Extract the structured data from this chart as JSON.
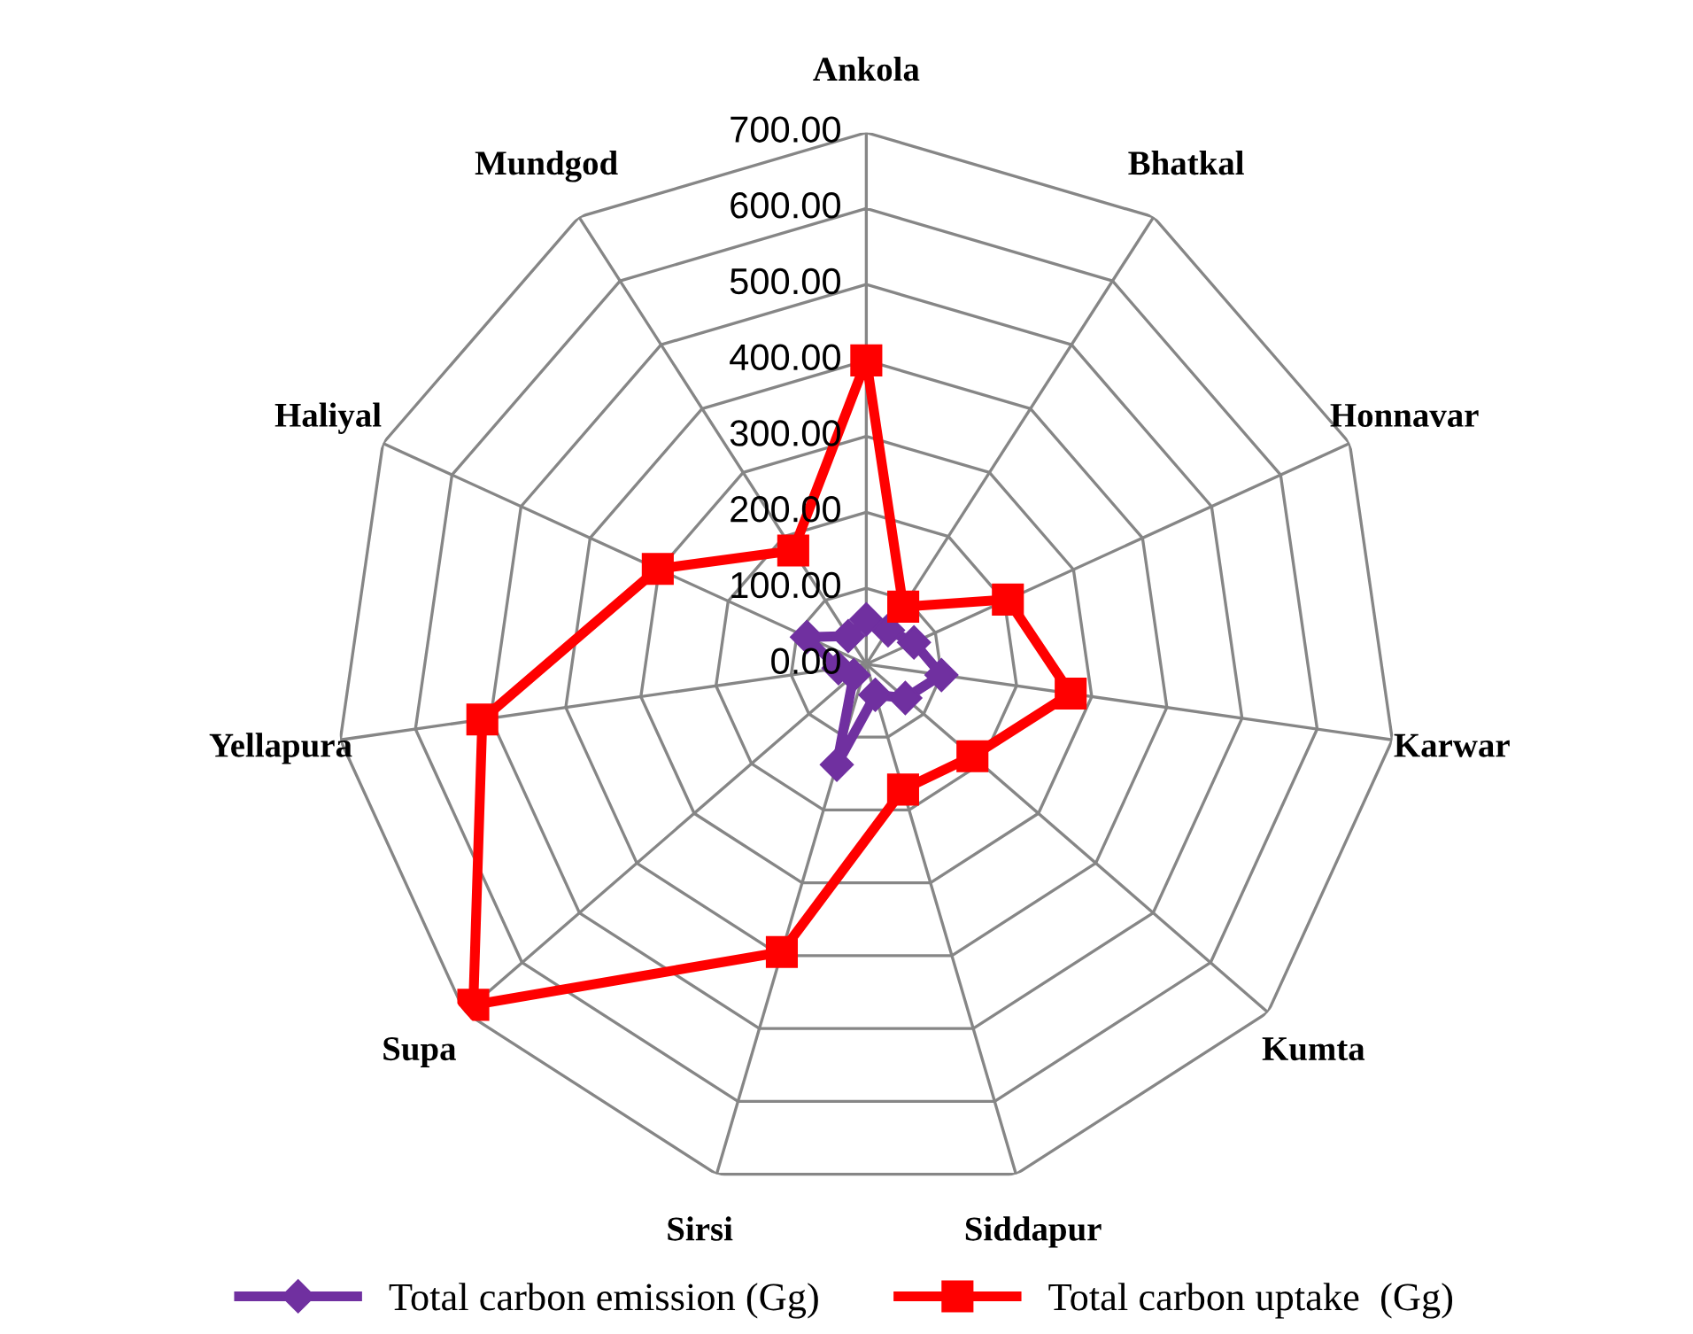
{
  "chart_data": {
    "type": "radar",
    "categories": [
      "Ankola",
      "Bhatkal",
      "Honnavar",
      "Karwar",
      "Kumta",
      "Siddapur",
      "Sirsi",
      "Supa",
      "Yellapura",
      "Haliyal",
      "Mundgod"
    ],
    "series": [
      {
        "name": "Total carbon emission (Gg)",
        "color": "#7030a0",
        "marker": "diamond",
        "values": [
          59,
          53,
          69,
          100,
          68,
          42,
          138,
          22,
          37,
          86,
          44
        ]
      },
      {
        "name": "Total carbon uptake  (Gg)",
        "color": "#ff0000",
        "marker": "square",
        "values": [
          400,
          90,
          205,
          272,
          185,
          172,
          395,
          685,
          511,
          302,
          178
        ]
      }
    ],
    "ylim": [
      0,
      700
    ],
    "yticks": [
      {
        "value": 0,
        "label": "0.00"
      },
      {
        "value": 100,
        "label": "100.00"
      },
      {
        "value": 200,
        "label": "200.00"
      },
      {
        "value": 300,
        "label": "300.00"
      },
      {
        "value": 400,
        "label": "400.00"
      },
      {
        "value": 500,
        "label": "500.00"
      },
      {
        "value": 600,
        "label": "600.00"
      },
      {
        "value": 700,
        "label": "700.00"
      }
    ],
    "grid": true,
    "legend": "bottom"
  }
}
